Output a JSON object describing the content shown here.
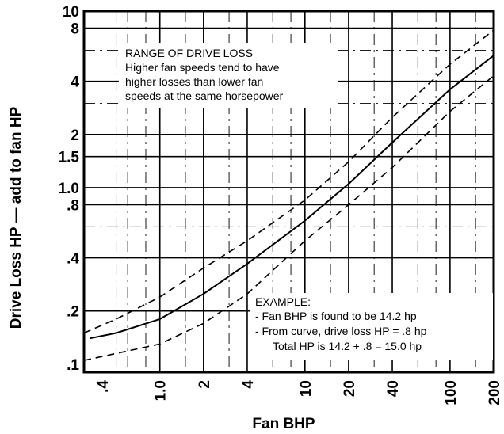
{
  "chart_data": {
    "type": "line",
    "xlabel": "Fan BHP",
    "ylabel": "Drive Loss HP — add to fan HP",
    "x_scale": "log",
    "y_scale": "log",
    "xlim": [
      0.3,
      200
    ],
    "ylim": [
      0.09,
      10
    ],
    "grid": true,
    "x_ticks": [
      {
        "value": 0.4,
        "label": ".4"
      },
      {
        "value": 1,
        "label": "1.0"
      },
      {
        "value": 2,
        "label": "2"
      },
      {
        "value": 4,
        "label": "4"
      },
      {
        "value": 10,
        "label": "10"
      },
      {
        "value": 20,
        "label": "20"
      },
      {
        "value": 40,
        "label": "40"
      },
      {
        "value": 100,
        "label": "100"
      },
      {
        "value": 200,
        "label": "200"
      }
    ],
    "y_ticks": [
      {
        "value": 0.1,
        "label": ".1"
      },
      {
        "value": 0.2,
        "label": ".2"
      },
      {
        "value": 0.4,
        "label": ".4"
      },
      {
        "value": 0.8,
        "label": ".8"
      },
      {
        "value": 1.0,
        "label": "1.0"
      },
      {
        "value": 1.5,
        "label": "1.5"
      },
      {
        "value": 2,
        "label": "2"
      },
      {
        "value": 4,
        "label": "4"
      },
      {
        "value": 8,
        "label": "8"
      },
      {
        "value": 10,
        "label": "10"
      }
    ],
    "series": [
      {
        "style": "solid",
        "x": [
          0.33,
          0.5,
          1,
          2,
          4,
          10,
          20,
          40,
          100,
          200
        ],
        "y": [
          0.14,
          0.15,
          0.18,
          0.25,
          0.37,
          0.65,
          1.05,
          1.8,
          3.6,
          5.6
        ]
      },
      {
        "style": "dashed",
        "x": [
          0.3,
          0.5,
          1,
          2,
          4,
          10,
          20,
          40,
          100,
          200
        ],
        "y": [
          0.15,
          0.18,
          0.24,
          0.35,
          0.5,
          0.85,
          1.4,
          2.5,
          5.0,
          7.8
        ]
      },
      {
        "style": "dashed",
        "x": [
          0.3,
          0.5,
          1,
          2,
          4,
          10,
          20,
          40,
          100,
          200
        ],
        "y": [
          0.105,
          0.115,
          0.13,
          0.17,
          0.25,
          0.5,
          0.8,
          1.3,
          2.7,
          4.3
        ]
      }
    ],
    "annotations": [
      {
        "title": "RANGE OF DRIVE LOSS",
        "lines": [
          "Higher fan speeds tend to have",
          "higher losses than lower fan",
          "speeds at the same horsepower"
        ]
      },
      {
        "title": "EXAMPLE:",
        "lines": [
          "- Fan BHP is found to be 14.2 hp",
          "- From curve, drive loss HP = .8 hp",
          "Total HP is 14.2 + .8 = 15.0 hp"
        ]
      }
    ]
  }
}
